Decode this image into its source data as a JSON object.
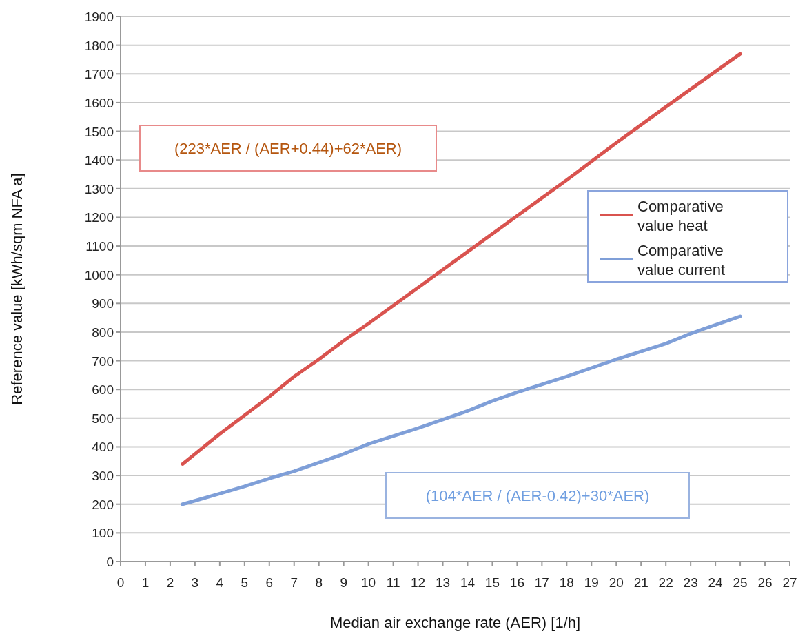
{
  "chart_data": {
    "type": "line",
    "xlabel": "Median air exchange rate (AER) [1/h]",
    "ylabel": "Reference  value  [kWh/sqm NFA a]",
    "xlim": [
      0,
      27
    ],
    "xticks": [
      0,
      1,
      2,
      3,
      4,
      5,
      6,
      7,
      8,
      9,
      10,
      11,
      12,
      13,
      14,
      15,
      16,
      17,
      18,
      19,
      20,
      21,
      22,
      23,
      24,
      25,
      26,
      27
    ],
    "ylim": [
      0,
      1900
    ],
    "yticks": [
      0,
      100,
      200,
      300,
      400,
      500,
      600,
      700,
      800,
      900,
      1000,
      1100,
      1200,
      1300,
      1400,
      1500,
      1600,
      1700,
      1800,
      1900
    ],
    "grid": "y",
    "legend": "right",
    "series": [
      {
        "name": "Comparative value heat",
        "color": "#d9534f",
        "x": [
          2.5,
          3,
          4,
          5,
          6,
          7,
          8,
          9,
          10,
          12,
          14,
          16,
          18,
          20,
          22,
          25
        ],
        "values": [
          340,
          375,
          445,
          510,
          575,
          645,
          705,
          770,
          830,
          955,
          1080,
          1205,
          1330,
          1460,
          1585,
          1770
        ]
      },
      {
        "name": "Comparative value current",
        "color": "#7f9fd8",
        "x": [
          2.5,
          3,
          4,
          5,
          6,
          7,
          8,
          9,
          10,
          12,
          14,
          15,
          16,
          18,
          20,
          22,
          23,
          25
        ],
        "values": [
          200,
          212,
          237,
          262,
          290,
          315,
          345,
          375,
          410,
          465,
          525,
          560,
          590,
          645,
          705,
          760,
          795,
          855
        ]
      }
    ],
    "annotations": [
      "(223*AER / (AER+0.44)+62*AER)",
      "(104*AER / (AER-0.42)+30*AER)"
    ]
  }
}
